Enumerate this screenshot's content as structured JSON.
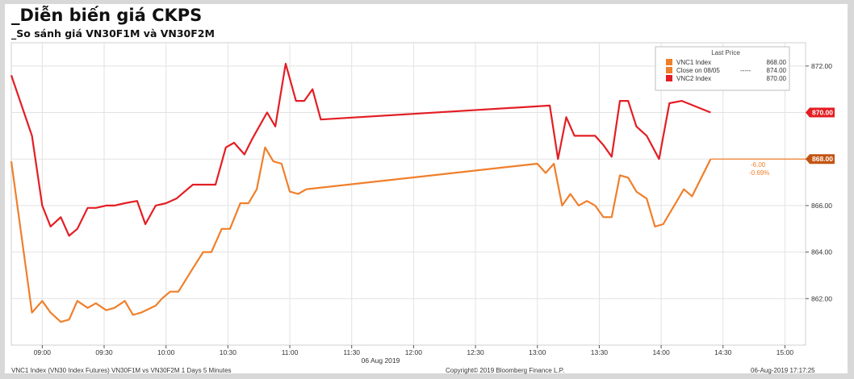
{
  "header": {
    "title": "_Diễn biến giá CKPS",
    "subtitle": "_So sánh giá VN30F1M và VN30F2M"
  },
  "legend": {
    "title": "Last Price",
    "items": [
      {
        "label": "VNC1 Index",
        "value": "868.00",
        "color": "#f07f2a"
      },
      {
        "label": "Close on 08/05",
        "value": "874.00",
        "dashes": "-----",
        "color": "#f07f2a"
      },
      {
        "label": "VNC2 Index",
        "value": "870.00",
        "color": "#e31e24"
      }
    ]
  },
  "price_tags": {
    "vnc2": "870.00",
    "vnc1": "868.00",
    "change": "-6.00",
    "change_pct": "-0.69%"
  },
  "footer": {
    "left": "VNC1 Index (VN30 Index Futures) VN30F1M vs VN30F2M 1 Days 5 Minutes",
    "center": "Copyright© 2019 Bloomberg Finance L.P.",
    "right": "06-Aug-2019 17:17:25"
  },
  "x_date_label": "06 Aug 2019",
  "chart_data": {
    "type": "line",
    "title": "",
    "xlabel": "06 Aug 2019",
    "ylabel": "",
    "xlim": [
      "08:45",
      "15:10"
    ],
    "ylim": [
      860,
      873
    ],
    "grid": true,
    "legend_position": "top-right",
    "x_ticks": [
      "09:00",
      "09:30",
      "10:00",
      "10:30",
      "11:00",
      "11:30",
      "12:00",
      "12:30",
      "13:00",
      "13:30",
      "14:00",
      "14:30",
      "15:00"
    ],
    "y_ticks": [
      "862.00",
      "864.00",
      "866.00",
      "868.00",
      "870.00",
      "872.00"
    ],
    "series": [
      {
        "name": "VNC2 Index",
        "color": "#e31e24",
        "points": [
          [
            "08:45",
            871.6
          ],
          [
            "08:55",
            869.0
          ],
          [
            "09:00",
            866.0
          ],
          [
            "09:04",
            865.1
          ],
          [
            "09:09",
            865.5
          ],
          [
            "09:13",
            864.7
          ],
          [
            "09:17",
            865.0
          ],
          [
            "09:22",
            865.9
          ],
          [
            "09:26",
            865.9
          ],
          [
            "09:31",
            866.0
          ],
          [
            "09:35",
            866.0
          ],
          [
            "09:40",
            866.1
          ],
          [
            "09:46",
            866.2
          ],
          [
            "09:50",
            865.2
          ],
          [
            "09:55",
            866.0
          ],
          [
            "10:00",
            866.1
          ],
          [
            "10:05",
            866.3
          ],
          [
            "10:13",
            866.9
          ],
          [
            "10:18",
            866.9
          ],
          [
            "10:24",
            866.9
          ],
          [
            "10:29",
            868.5
          ],
          [
            "10:33",
            868.7
          ],
          [
            "10:38",
            868.2
          ],
          [
            "10:42",
            868.9
          ],
          [
            "10:49",
            870.0
          ],
          [
            "10:53",
            869.4
          ],
          [
            "10:58",
            872.1
          ],
          [
            "11:03",
            870.5
          ],
          [
            "11:07",
            870.5
          ],
          [
            "11:11",
            871.0
          ],
          [
            "11:15",
            869.7
          ],
          [
            "13:06",
            870.3
          ],
          [
            "13:10",
            868.0
          ],
          [
            "13:14",
            869.8
          ],
          [
            "13:18",
            869.0
          ],
          [
            "13:24",
            869.0
          ],
          [
            "13:28",
            869.0
          ],
          [
            "13:32",
            868.6
          ],
          [
            "13:36",
            868.1
          ],
          [
            "13:40",
            870.5
          ],
          [
            "13:44",
            870.5
          ],
          [
            "13:48",
            869.4
          ],
          [
            "13:53",
            869.0
          ],
          [
            "13:59",
            868.0
          ],
          [
            "14:04",
            870.4
          ],
          [
            "14:10",
            870.5
          ],
          [
            "14:24",
            870.0
          ]
        ]
      },
      {
        "name": "VNC1 Index",
        "color": "#f07f2a",
        "points": [
          [
            "08:45",
            867.9
          ],
          [
            "08:55",
            861.4
          ],
          [
            "09:00",
            861.9
          ],
          [
            "09:04",
            861.4
          ],
          [
            "09:09",
            861.0
          ],
          [
            "09:13",
            861.1
          ],
          [
            "09:17",
            861.9
          ],
          [
            "09:22",
            861.6
          ],
          [
            "09:26",
            861.8
          ],
          [
            "09:31",
            861.5
          ],
          [
            "09:35",
            861.6
          ],
          [
            "09:40",
            861.9
          ],
          [
            "09:44",
            861.3
          ],
          [
            "09:48",
            861.4
          ],
          [
            "09:55",
            861.7
          ],
          [
            "09:58",
            862.0
          ],
          [
            "10:02",
            862.3
          ],
          [
            "10:06",
            862.3
          ],
          [
            "10:13",
            863.3
          ],
          [
            "10:18",
            864.0
          ],
          [
            "10:22",
            864.0
          ],
          [
            "10:27",
            865.0
          ],
          [
            "10:31",
            865.0
          ],
          [
            "10:36",
            866.1
          ],
          [
            "10:40",
            866.1
          ],
          [
            "10:44",
            866.7
          ],
          [
            "10:48",
            868.5
          ],
          [
            "10:52",
            867.9
          ],
          [
            "10:56",
            867.8
          ],
          [
            "11:00",
            866.6
          ],
          [
            "11:04",
            866.5
          ],
          [
            "11:08",
            866.7
          ],
          [
            "13:00",
            867.8
          ],
          [
            "13:04",
            867.4
          ],
          [
            "13:08",
            867.8
          ],
          [
            "13:12",
            866.0
          ],
          [
            "13:16",
            866.5
          ],
          [
            "13:20",
            866.0
          ],
          [
            "13:24",
            866.2
          ],
          [
            "13:28",
            866.0
          ],
          [
            "13:32",
            865.5
          ],
          [
            "13:36",
            865.5
          ],
          [
            "13:40",
            867.3
          ],
          [
            "13:44",
            867.2
          ],
          [
            "13:48",
            866.6
          ],
          [
            "13:53",
            866.3
          ],
          [
            "13:57",
            865.1
          ],
          [
            "14:01",
            865.2
          ],
          [
            "14:07",
            866.1
          ],
          [
            "14:11",
            866.7
          ],
          [
            "14:15",
            866.4
          ],
          [
            "14:24",
            868.0
          ]
        ]
      }
    ],
    "reference_line": {
      "label": "868.00",
      "value": 868.0
    }
  }
}
